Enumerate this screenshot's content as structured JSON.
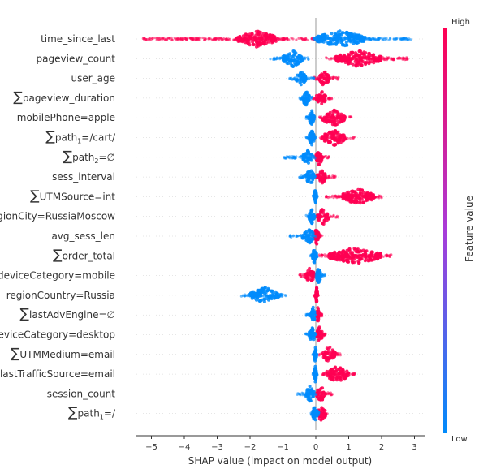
{
  "chart_data": {
    "type": "scatter",
    "subtype": "shap-beeswarm-summary",
    "xlabel": "SHAP value (impact on model output)",
    "xlim": [
      -5.6,
      3.3
    ],
    "xticks": [
      -5,
      -4,
      -3,
      -2,
      -1,
      0,
      1,
      2,
      3
    ],
    "colorbar": {
      "label": "Feature value",
      "high_label": "High",
      "low_label": "Low",
      "high_color": "#ff0052",
      "low_color": "#008bfb"
    },
    "features": [
      {
        "label": "time_since_last",
        "summation": false,
        "blue_ranges": [
          [
            -0.1,
            2.9
          ]
        ],
        "pink_ranges": [
          [
            -5.3,
            0.1
          ]
        ],
        "dense_blue": [
          0.0,
          1.5
        ],
        "dense_pink": [
          -2.4,
          -1.2
        ]
      },
      {
        "label": "pageview_count",
        "summation": false,
        "blue_ranges": [
          [
            -1.4,
            -0.2
          ]
        ],
        "pink_ranges": [
          [
            0.3,
            2.8
          ]
        ],
        "dense_blue": [
          -1.0,
          -0.4
        ],
        "dense_pink": [
          0.6,
          2.0
        ]
      },
      {
        "label": "user_age",
        "summation": false,
        "blue_ranges": [
          [
            -0.85,
            -0.05
          ]
        ],
        "pink_ranges": [
          [
            -0.1,
            0.7
          ]
        ],
        "dense_blue": [
          -0.6,
          -0.3
        ],
        "dense_pink": [
          0.1,
          0.4
        ]
      },
      {
        "label": "pageview_duration",
        "summation": true,
        "blue_ranges": [
          [
            -0.5,
            -0.1
          ]
        ],
        "pink_ranges": [
          [
            -0.1,
            0.5
          ]
        ],
        "dense_blue": [
          -0.4,
          -0.2
        ],
        "dense_pink": [
          0.0,
          0.3
        ]
      },
      {
        "label": "mobilePhone=apple",
        "summation": false,
        "blue_ranges": [
          [
            -0.3,
            0.0
          ]
        ],
        "pink_ranges": [
          [
            0.1,
            1.1
          ]
        ],
        "dense_blue": [
          -0.2,
          -0.05
        ],
        "dense_pink": [
          0.2,
          0.9
        ]
      },
      {
        "label": "path=/cart/",
        "summation": true,
        "subscript": "1",
        "prefix": "path",
        "suffix": "=/cart/",
        "blue_ranges": [
          [
            -0.3,
            0.0
          ]
        ],
        "pink_ranges": [
          [
            0.1,
            1.2
          ]
        ],
        "dense_blue": [
          -0.2,
          -0.05
        ],
        "dense_pink": [
          0.2,
          0.9
        ]
      },
      {
        "label": "path=∅",
        "summation": true,
        "subscript": "2",
        "prefix": "path",
        "suffix": "=∅",
        "blue_ranges": [
          [
            -1.0,
            0.0
          ]
        ],
        "pink_ranges": [
          [
            -0.1,
            0.4
          ]
        ],
        "dense_blue": [
          -0.4,
          -0.1
        ],
        "dense_pink": [
          0.0,
          0.2
        ]
      },
      {
        "label": "sess_interval",
        "summation": false,
        "blue_ranges": [
          [
            -0.5,
            0.0
          ]
        ],
        "pink_ranges": [
          [
            0.0,
            0.6
          ]
        ],
        "dense_blue": [
          -0.3,
          -0.05
        ],
        "dense_pink": [
          0.05,
          0.3
        ]
      },
      {
        "label": "UTMSource=int",
        "summation": true,
        "blue_ranges": [
          [
            -0.1,
            0.05
          ]
        ],
        "pink_ranges": [
          [
            0.3,
            2.0
          ]
        ],
        "dense_blue": [
          -0.05,
          0.02
        ],
        "dense_pink": [
          0.8,
          1.8
        ]
      },
      {
        "label": "regionCity=RussiaMoscow",
        "summation": false,
        "blue_ranges": [
          [
            -0.3,
            0.0
          ]
        ],
        "pink_ranges": [
          [
            0.0,
            0.7
          ]
        ],
        "dense_blue": [
          -0.2,
          -0.05
        ],
        "dense_pink": [
          0.05,
          0.4
        ]
      },
      {
        "label": "avg_sess_len",
        "summation": false,
        "blue_ranges": [
          [
            -0.8,
            0.0
          ]
        ],
        "pink_ranges": [
          [
            -0.1,
            0.2
          ]
        ],
        "dense_blue": [
          -0.4,
          -0.05
        ],
        "dense_pink": [
          -0.05,
          0.1
        ]
      },
      {
        "label": "order_total",
        "summation": true,
        "blue_ranges": [
          [
            -0.2,
            0.05
          ]
        ],
        "pink_ranges": [
          [
            0.1,
            2.3
          ]
        ],
        "dense_blue": [
          -0.1,
          0.02
        ],
        "dense_pink": [
          0.4,
          2.0
        ]
      },
      {
        "label": "deviceCategory=mobile",
        "summation": false,
        "blue_ranges": [
          [
            0.0,
            0.3
          ]
        ],
        "pink_ranges": [
          [
            -0.5,
            0.0
          ]
        ],
        "dense_blue": [
          0.02,
          0.15
        ],
        "dense_pink": [
          -0.3,
          -0.05
        ]
      },
      {
        "label": "regionCountry=Russia",
        "summation": false,
        "blue_ranges": [
          [
            -2.3,
            -0.9
          ]
        ],
        "pink_ranges": [
          [
            -0.05,
            0.1
          ]
        ],
        "dense_blue": [
          -2.0,
          -1.1
        ],
        "dense_pink": [
          0.0,
          0.05
        ]
      },
      {
        "label": "lastAdvEngine=∅",
        "summation": true,
        "blue_ranges": [
          [
            -0.3,
            0.0
          ]
        ],
        "pink_ranges": [
          [
            0.0,
            0.2
          ]
        ],
        "dense_blue": [
          -0.15,
          -0.02
        ],
        "dense_pink": [
          0.02,
          0.1
        ]
      },
      {
        "label": "deviceCategory=desktop",
        "summation": false,
        "blue_ranges": [
          [
            -0.4,
            0.0
          ]
        ],
        "pink_ranges": [
          [
            0.0,
            0.3
          ]
        ],
        "dense_blue": [
          -0.2,
          -0.02
        ],
        "dense_pink": [
          0.02,
          0.2
        ]
      },
      {
        "label": "UTMMedium=email",
        "summation": true,
        "blue_ranges": [
          [
            -0.1,
            0.05
          ]
        ],
        "pink_ranges": [
          [
            0.1,
            0.8
          ]
        ],
        "dense_blue": [
          -0.05,
          0.02
        ],
        "dense_pink": [
          0.2,
          0.6
        ]
      },
      {
        "label": "lastTrafficSource=email",
        "summation": true,
        "blue_ranges": [
          [
            -0.1,
            0.05
          ]
        ],
        "pink_ranges": [
          [
            0.2,
            1.2
          ]
        ],
        "dense_blue": [
          -0.05,
          0.02
        ],
        "dense_pink": [
          0.3,
          1.0
        ]
      },
      {
        "label": "session_count",
        "summation": false,
        "blue_ranges": [
          [
            -0.6,
            0.0
          ]
        ],
        "pink_ranges": [
          [
            0.0,
            0.5
          ]
        ],
        "dense_blue": [
          -0.3,
          -0.05
        ],
        "dense_pink": [
          0.02,
          0.3
        ]
      },
      {
        "label": "path=/",
        "summation": true,
        "subscript": "1",
        "prefix": "path",
        "suffix": "=/",
        "blue_ranges": [
          [
            -0.15,
            0.1
          ]
        ],
        "pink_ranges": [
          [
            0.0,
            0.35
          ]
        ],
        "dense_blue": [
          -0.1,
          0.05
        ],
        "dense_pink": [
          0.05,
          0.3
        ]
      }
    ]
  }
}
